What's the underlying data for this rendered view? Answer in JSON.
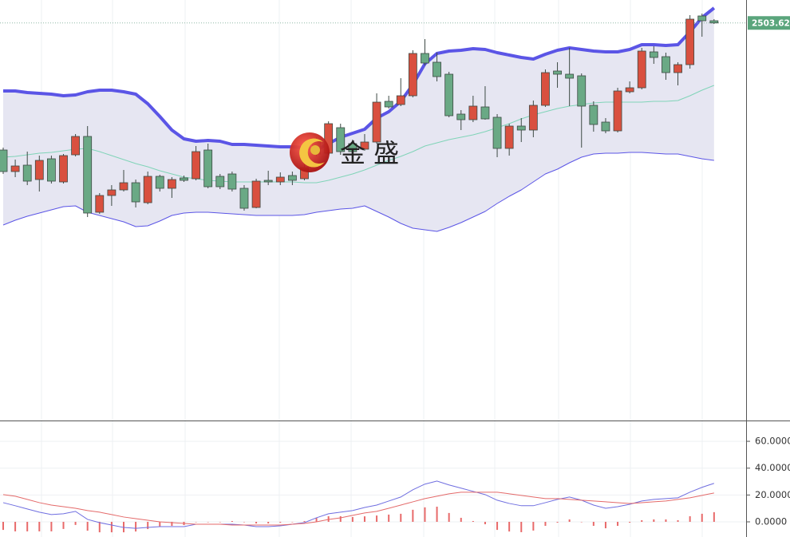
{
  "chart_data": [
    {
      "type": "candlestick",
      "xlim": [
        -0.265,
        61.66
      ],
      "ylim": [
        2254.5,
        2518
      ],
      "open": [
        2424,
        2410.5,
        2414.5,
        2405.5,
        2418.5,
        2404,
        2421,
        2432.5,
        2385,
        2395.5,
        2399,
        2403.5,
        2391,
        2407.5,
        2400,
        2406.5,
        2406,
        2424,
        2407.5,
        2409,
        2400,
        2388,
        2405,
        2404,
        2408,
        2406,
        2429.5,
        2422,
        2438,
        2428,
        2424.5,
        2429,
        2454.5,
        2452.5,
        2458,
        2484.5,
        2479,
        2471.5,
        2446.5,
        2443,
        2451,
        2444.5,
        2425,
        2439,
        2436.5,
        2452,
        2473.5,
        2471.5,
        2470.5,
        2452,
        2441.5,
        2436,
        2460.5,
        2463,
        2485.5,
        2482.5,
        2472.5,
        2477.5,
        2508,
        2505
      ],
      "high": [
        2425.5,
        2418,
        2423,
        2420.5,
        2420.5,
        2421.5,
        2434,
        2439,
        2397,
        2402,
        2411.5,
        2405.5,
        2410.5,
        2408.5,
        2407,
        2408,
        2426.5,
        2428,
        2409,
        2410.5,
        2402,
        2406,
        2411,
        2410,
        2410.5,
        2415.5,
        2432,
        2442,
        2440.5,
        2430.5,
        2434,
        2459.5,
        2458,
        2469,
        2486.5,
        2493.5,
        2485,
        2473,
        2449,
        2458,
        2464,
        2446.5,
        2440.5,
        2444,
        2455,
        2474.5,
        2479,
        2488,
        2472,
        2454.5,
        2444,
        2463,
        2467,
        2488,
        2489,
        2485,
        2479,
        2508.5,
        2509.5,
        2506
      ],
      "low": [
        2409,
        2407,
        2402,
        2398,
        2403,
        2403,
        2420,
        2382,
        2384,
        2389,
        2398,
        2388,
        2390,
        2398,
        2394,
        2404,
        2405,
        2400,
        2399.5,
        2398,
        2386,
        2387.5,
        2402,
        2402,
        2402,
        2405,
        2420,
        2421,
        2421,
        2421.5,
        2423.5,
        2428,
        2450,
        2451.5,
        2457,
        2477,
        2467,
        2444.5,
        2436.5,
        2441.5,
        2443,
        2419.5,
        2420.5,
        2429,
        2432,
        2451,
        2463,
        2451.5,
        2425.5,
        2435.5,
        2434.5,
        2435,
        2459.5,
        2462,
        2478,
        2468,
        2464.5,
        2475,
        2495,
        2503
      ],
      "close": [
        2410.5,
        2414,
        2404.5,
        2417.5,
        2404.5,
        2420.5,
        2432.5,
        2384.5,
        2395.5,
        2399,
        2403.5,
        2391.5,
        2407.5,
        2400,
        2405.5,
        2405,
        2423,
        2401,
        2401,
        2399.5,
        2387.5,
        2404.5,
        2404,
        2407,
        2405,
        2413,
        2421.5,
        2440.5,
        2423,
        2423,
        2429,
        2454,
        2451,
        2458,
        2484.5,
        2478.5,
        2470,
        2445.5,
        2443,
        2451.5,
        2443.5,
        2425,
        2439,
        2436.5,
        2452,
        2472.5,
        2471.5,
        2469,
        2451.5,
        2440,
        2436,
        2461,
        2463,
        2486,
        2482,
        2472.5,
        2477.5,
        2506,
        2505,
        2503.62
      ],
      "up_color": "#d9503f",
      "down_color": "#6aa985",
      "bands": {
        "color": "#5b55e6",
        "middle_color": "#80d4b8",
        "fill": "#e6e6f2",
        "upper": [
          2461,
          2461,
          2460,
          2459.5,
          2459,
          2458,
          2458.5,
          2460.5,
          2461.5,
          2461.5,
          2460.5,
          2459,
          2453,
          2445,
          2436.5,
          2431,
          2429.5,
          2430,
          2429.5,
          2427.5,
          2427.5,
          2427,
          2426.5,
          2426,
          2426,
          2425.5,
          2424,
          2428,
          2432,
          2434.5,
          2437,
          2444,
          2448,
          2454.5,
          2465,
          2478,
          2484.5,
          2486,
          2486.5,
          2487.5,
          2487,
          2485,
          2483.5,
          2482,
          2481,
          2484,
          2486.5,
          2488,
          2487,
          2486,
          2485.5,
          2485.5,
          2487,
          2490,
          2490,
          2489.5,
          2490,
          2498,
          2507,
          2513
        ],
        "middle": [
          2419.5,
          2420,
          2421,
          2422,
          2422.5,
          2423.5,
          2424.5,
          2425,
          2423,
          2420.5,
          2418,
          2415.5,
          2413.5,
          2411,
          2409,
          2407,
          2406,
          2405,
          2404.5,
          2404,
          2404,
          2404,
          2404,
          2404,
          2404,
          2403.5,
          2403.5,
          2405,
          2407,
          2409,
          2411.5,
          2414.5,
          2417.5,
          2420,
          2423,
          2426.5,
          2428.5,
          2430.5,
          2432,
          2433.5,
          2435.5,
          2438,
          2440.5,
          2443.5,
          2446,
          2448,
          2450,
          2451.5,
          2452.5,
          2453.5,
          2454,
          2454,
          2454,
          2454,
          2454.5,
          2454.5,
          2455,
          2458,
          2461.5,
          2464.5
        ],
        "lower": [
          2377,
          2380,
          2382.5,
          2384.5,
          2386.5,
          2388.5,
          2389,
          2385,
          2383,
          2381,
          2379,
          2376,
          2376.5,
          2379.5,
          2383,
          2384.5,
          2385,
          2385,
          2384.5,
          2384,
          2383.5,
          2383,
          2383,
          2383,
          2383,
          2383.5,
          2385,
          2386,
          2387,
          2387.5,
          2389,
          2385.5,
          2382,
          2378,
          2375,
          2374,
          2373,
          2375.5,
          2378.5,
          2382,
          2385.5,
          2390.5,
          2395,
          2399,
          2404,
          2409,
          2412,
          2416,
          2419.5,
          2421.5,
          2422,
          2422,
          2422.5,
          2422.5,
          2422,
          2421.5,
          2421.5,
          2420,
          2418.5,
          2417.5
        ]
      },
      "last_price": {
        "value": 2503.62,
        "label": "2503.620"
      },
      "last_price_color": "#5aa57c",
      "watermark": "金 盛"
    },
    {
      "type": "macd",
      "xlim": [
        -0.265,
        61.66
      ],
      "ylim": [
        -11.3,
        75.5
      ],
      "yticks": [
        {
          "value": 0,
          "label": "0.0000"
        },
        {
          "value": 20,
          "label": "20.0000"
        },
        {
          "value": 40,
          "label": "40.0000"
        },
        {
          "value": 60,
          "label": "60.0000"
        }
      ],
      "grid": true,
      "lines": [
        {
          "color": "#6f6ee0",
          "values": [
            14.3,
            12.0,
            9.6,
            7.2,
            5.4,
            6.0,
            7.8,
            1.8,
            -0.6,
            -2.4,
            -4.2,
            -4.8,
            -4.2,
            -3.6,
            -3.6,
            -3.6,
            -1.8,
            -1.8,
            -1.8,
            -1.8,
            -2.4,
            -3.6,
            -3.6,
            -3.0,
            -1.8,
            -0.6,
            3.0,
            6.0,
            7.2,
            8.4,
            10.7,
            12.5,
            15.5,
            18.5,
            23.9,
            28.1,
            30.4,
            27.5,
            25.1,
            22.7,
            20.3,
            16.1,
            13.7,
            12.0,
            12.0,
            14.3,
            16.7,
            18.5,
            16.1,
            12.5,
            10.1,
            11.3,
            13.1,
            15.5,
            16.7,
            17.3,
            17.9,
            22.1,
            25.7,
            28.7
          ]
        },
        {
          "color": "#e46a6a",
          "values": [
            20.3,
            19.1,
            16.7,
            14.3,
            12.5,
            11.3,
            10.1,
            8.4,
            7.2,
            5.4,
            3.6,
            2.4,
            1.2,
            0,
            -0.6,
            -1.2,
            -1.8,
            -1.8,
            -1.8,
            -2.4,
            -2.4,
            -2.4,
            -2.4,
            -2.4,
            -1.8,
            -1.2,
            0,
            1.8,
            3.0,
            4.8,
            6.6,
            7.8,
            10.1,
            12.5,
            14.9,
            17.3,
            19.1,
            20.9,
            22.1,
            22.1,
            22.1,
            22.1,
            20.9,
            19.7,
            18.5,
            17.3,
            17.3,
            16.7,
            16.1,
            15.5,
            14.9,
            14.3,
            13.7,
            14.3,
            14.9,
            15.5,
            16.7,
            17.9,
            19.7,
            21.5
          ]
        }
      ],
      "histogram": {
        "color": "#e86a6a",
        "values": [
          -6.0,
          -7.1,
          -7.1,
          -7.1,
          -7.1,
          -5.3,
          -2.3,
          -6.6,
          -7.8,
          -7.8,
          -7.8,
          -7.2,
          -5.4,
          -3.6,
          -3.0,
          -2.4,
          0,
          0,
          0,
          0.6,
          0,
          -1.2,
          -1.2,
          -0.6,
          0,
          0.6,
          3.0,
          4.2,
          4.2,
          3.6,
          4.1,
          4.7,
          5.4,
          6.0,
          9.0,
          10.8,
          11.3,
          6.6,
          3.0,
          0.6,
          -1.8,
          -6.0,
          -7.2,
          -7.7,
          -6.5,
          -3.0,
          -0.6,
          1.8,
          0,
          -3.0,
          -4.8,
          -3.0,
          -0.6,
          1.2,
          1.8,
          1.8,
          1.2,
          4.2,
          6.0,
          7.2
        ]
      }
    }
  ]
}
